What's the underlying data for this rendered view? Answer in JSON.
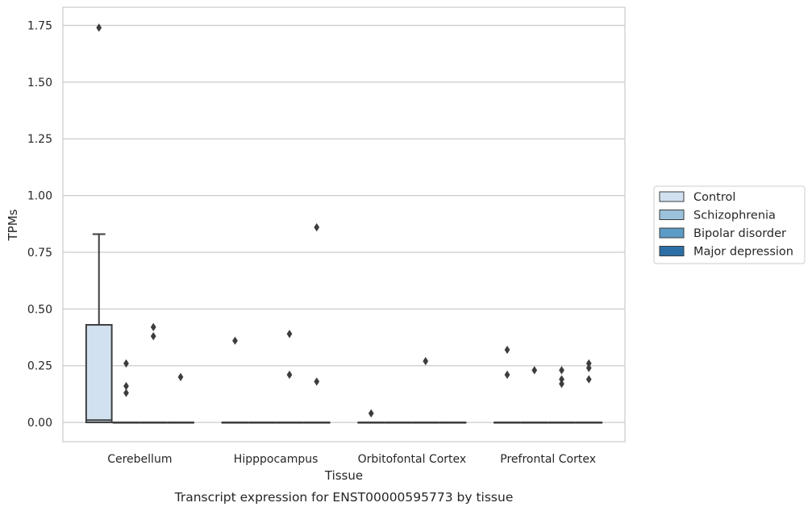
{
  "chart_data": {
    "type": "boxplot",
    "caption": "Transcript expression for ENST00000595773 by tissue",
    "xlabel": "Tissue",
    "ylabel": "TPMs",
    "ylim": [
      -0.085,
      1.83
    ],
    "yticks": [
      0.0,
      0.25,
      0.5,
      0.75,
      1.0,
      1.25,
      1.5,
      1.75
    ],
    "ytick_labels": [
      "0.00",
      "0.25",
      "0.50",
      "0.75",
      "1.00",
      "1.25",
      "1.50",
      "1.75"
    ],
    "grid": true,
    "legend_position": "right",
    "categories": [
      "Cerebellum",
      "Hipppocampus",
      "Orbitofontal Cortex",
      "Prefrontal Cortex"
    ],
    "series": [
      {
        "name": "Control",
        "color": "#d1e1f0",
        "boxes": [
          {
            "q1": 0.0,
            "median": 0.01,
            "q3": 0.43,
            "whisker_low": 0.0,
            "whisker_high": 0.83,
            "outliers": [
              1.74
            ]
          },
          {
            "q1": 0.0,
            "median": 0.0,
            "q3": 0.0,
            "whisker_low": 0.0,
            "whisker_high": 0.0,
            "outliers": [
              0.36
            ]
          },
          {
            "q1": 0.0,
            "median": 0.0,
            "q3": 0.0,
            "whisker_low": 0.0,
            "whisker_high": 0.0,
            "outliers": [
              0.04
            ]
          },
          {
            "q1": 0.0,
            "median": 0.0,
            "q3": 0.0,
            "whisker_low": 0.0,
            "whisker_high": 0.0,
            "outliers": [
              0.32,
              0.21
            ]
          }
        ]
      },
      {
        "name": "Schizophrenia",
        "color": "#9cc2db",
        "boxes": [
          {
            "q1": 0.0,
            "median": 0.0,
            "q3": 0.0,
            "whisker_low": 0.0,
            "whisker_high": 0.0,
            "outliers": [
              0.26,
              0.16,
              0.13
            ]
          },
          {
            "q1": 0.0,
            "median": 0.0,
            "q3": 0.0,
            "whisker_low": 0.0,
            "whisker_high": 0.0,
            "outliers": []
          },
          {
            "q1": 0.0,
            "median": 0.0,
            "q3": 0.0,
            "whisker_low": 0.0,
            "whisker_high": 0.0,
            "outliers": []
          },
          {
            "q1": 0.0,
            "median": 0.0,
            "q3": 0.0,
            "whisker_low": 0.0,
            "whisker_high": 0.0,
            "outliers": [
              0.23
            ]
          }
        ]
      },
      {
        "name": "Bipolar disorder",
        "color": "#5b9bc6",
        "boxes": [
          {
            "q1": 0.0,
            "median": 0.0,
            "q3": 0.0,
            "whisker_low": 0.0,
            "whisker_high": 0.0,
            "outliers": [
              0.42,
              0.38
            ]
          },
          {
            "q1": 0.0,
            "median": 0.0,
            "q3": 0.0,
            "whisker_low": 0.0,
            "whisker_high": 0.0,
            "outliers": [
              0.39,
              0.21
            ]
          },
          {
            "q1": 0.0,
            "median": 0.0,
            "q3": 0.0,
            "whisker_low": 0.0,
            "whisker_high": 0.0,
            "outliers": [
              0.27
            ]
          },
          {
            "q1": 0.0,
            "median": 0.0,
            "q3": 0.0,
            "whisker_low": 0.0,
            "whisker_high": 0.0,
            "outliers": [
              0.23,
              0.19,
              0.17
            ]
          }
        ]
      },
      {
        "name": "Major depression",
        "color": "#2c6ea6",
        "boxes": [
          {
            "q1": 0.0,
            "median": 0.0,
            "q3": 0.0,
            "whisker_low": 0.0,
            "whisker_high": 0.0,
            "outliers": [
              0.2
            ]
          },
          {
            "q1": 0.0,
            "median": 0.0,
            "q3": 0.0,
            "whisker_low": 0.0,
            "whisker_high": 0.0,
            "outliers": [
              0.86,
              0.18
            ]
          },
          {
            "q1": 0.0,
            "median": 0.0,
            "q3": 0.0,
            "whisker_low": 0.0,
            "whisker_high": 0.0,
            "outliers": []
          },
          {
            "q1": 0.0,
            "median": 0.0,
            "q3": 0.0,
            "whisker_low": 0.0,
            "whisker_high": 0.0,
            "outliers": [
              0.26,
              0.24,
              0.19
            ]
          }
        ]
      }
    ]
  }
}
